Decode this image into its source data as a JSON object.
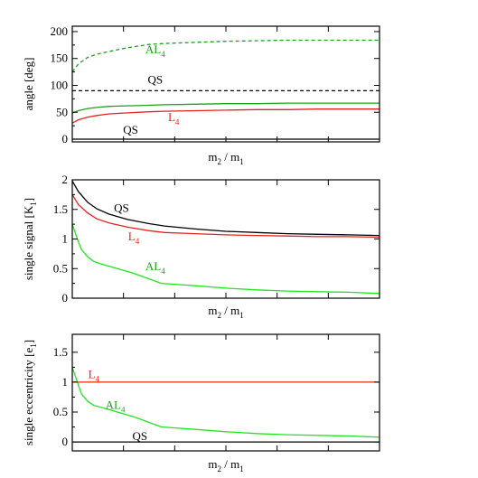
{
  "colors": {
    "black": "#000000",
    "red": "#e8231f",
    "green": "#1aa31a",
    "light_green": "#22e622",
    "frame": "#000000"
  },
  "chart_data": [
    {
      "type": "line",
      "xlabel": "m2 / m1",
      "xlabel_parts": {
        "a": "m",
        "a_sub": "2",
        "sep": " / ",
        "b": "m",
        "b_sub": "1"
      },
      "ylabel": "angle [deg]",
      "ylim": [
        -5,
        210
      ],
      "yticks": [
        0,
        50,
        100,
        150,
        200
      ],
      "ytick_labels": [
        "0",
        "50",
        "100",
        "150",
        "200"
      ],
      "xlim": [
        0,
        1
      ],
      "grid": false,
      "series": [
        {
          "key": "AL4_dashed",
          "color": "#1aa31a",
          "dash": true,
          "x": [
            0.0,
            0.02,
            0.05,
            0.08,
            0.12,
            0.18,
            0.25,
            0.3,
            0.4,
            0.5,
            0.6,
            0.7,
            0.8,
            0.9,
            1.0
          ],
          "y": [
            125,
            140,
            152,
            158,
            163,
            170,
            176,
            178,
            180,
            182,
            183,
            184,
            184,
            184,
            184
          ]
        },
        {
          "key": "QS_dashed",
          "color": "#000000",
          "dash": true,
          "x": [
            0,
            1
          ],
          "y": [
            90,
            90
          ]
        },
        {
          "key": "AL4_solid",
          "color": "#1aa31a",
          "dash": false,
          "x": [
            0.0,
            0.02,
            0.05,
            0.08,
            0.12,
            0.18,
            0.25,
            0.3,
            0.4,
            0.5,
            0.6,
            0.7,
            0.8,
            0.9,
            1.0
          ],
          "y": [
            49,
            53,
            57,
            59,
            61,
            62,
            63,
            64,
            65,
            66,
            66,
            67,
            67,
            67,
            67
          ]
        },
        {
          "key": "L4_solid",
          "color": "#e8231f",
          "dash": false,
          "x": [
            0.0,
            0.02,
            0.05,
            0.08,
            0.12,
            0.18,
            0.25,
            0.3,
            0.4,
            0.5,
            0.6,
            0.7,
            0.8,
            0.9,
            1.0
          ],
          "y": [
            30,
            36,
            41,
            44,
            47,
            49,
            51,
            52,
            53,
            54,
            55,
            55,
            56,
            56,
            56
          ]
        },
        {
          "key": "QS_solid",
          "color": "#000000",
          "dash": false,
          "x": [
            0,
            1
          ],
          "y": [
            0,
            0
          ]
        }
      ],
      "annotations": [
        {
          "key": "AL4",
          "text": "AL",
          "sub": "4",
          "color": "#1aa31a",
          "x": 0.27,
          "y": 160
        },
        {
          "key": "QS_top",
          "text": "QS",
          "sub": "",
          "color": "#000000",
          "x": 0.27,
          "y": 103
        },
        {
          "key": "L4",
          "text": "L",
          "sub": "4",
          "color": "#e8231f",
          "x": 0.33,
          "y": 34
        },
        {
          "key": "QS_bottom",
          "text": "QS",
          "sub": "",
          "color": "#000000",
          "x": 0.19,
          "y": 10
        }
      ]
    },
    {
      "type": "line",
      "xlabel": "m2 / m1",
      "xlabel_parts": {
        "a": "m",
        "a_sub": "2",
        "sep": " / ",
        "b": "m",
        "b_sub": "1"
      },
      "ylabel": "single signal [K1]",
      "ylabel_parts": {
        "a": "single signal [K",
        "a_sub": "1",
        "b": "]"
      },
      "ylim": [
        0,
        2
      ],
      "yticks": [
        0,
        0.5,
        1,
        1.5,
        2
      ],
      "ytick_labels": [
        "0",
        "0.5",
        "1",
        "1.5",
        "2"
      ],
      "xlim": [
        0,
        1
      ],
      "grid": false,
      "series": [
        {
          "key": "QS",
          "color": "#000000",
          "dash": false,
          "x": [
            0.0,
            0.02,
            0.05,
            0.08,
            0.12,
            0.18,
            0.25,
            0.3,
            0.4,
            0.5,
            0.6,
            0.7,
            0.8,
            0.9,
            1.0
          ],
          "y": [
            1.98,
            1.8,
            1.62,
            1.51,
            1.42,
            1.33,
            1.26,
            1.22,
            1.17,
            1.13,
            1.11,
            1.09,
            1.08,
            1.07,
            1.06
          ]
        },
        {
          "key": "L4",
          "color": "#e8231f",
          "dash": false,
          "x": [
            0.0,
            0.02,
            0.05,
            0.08,
            0.12,
            0.18,
            0.25,
            0.3,
            0.4,
            0.5,
            0.6,
            0.7,
            0.8,
            0.9,
            1.0
          ],
          "y": [
            1.75,
            1.58,
            1.44,
            1.34,
            1.27,
            1.2,
            1.14,
            1.11,
            1.09,
            1.07,
            1.06,
            1.05,
            1.04,
            1.04,
            1.03
          ]
        },
        {
          "key": "AL4",
          "color": "#22e622",
          "dash": false,
          "x": [
            0.0,
            0.02,
            0.03,
            0.05,
            0.07,
            0.1,
            0.2,
            0.29,
            0.4,
            0.5,
            0.6,
            0.7,
            0.8,
            0.9,
            1.0
          ],
          "y": [
            1.25,
            0.95,
            0.82,
            0.7,
            0.62,
            0.57,
            0.42,
            0.25,
            0.21,
            0.17,
            0.14,
            0.12,
            0.11,
            0.1,
            0.08
          ]
        }
      ],
      "annotations": [
        {
          "key": "QS",
          "text": "QS",
          "sub": "",
          "color": "#000000",
          "x": 0.16,
          "y": 1.46
        },
        {
          "key": "L4",
          "text": "L",
          "sub": "4",
          "color": "#e8231f",
          "x": 0.2,
          "y": 0.98
        },
        {
          "key": "AL4",
          "text": "AL",
          "sub": "4",
          "color": "#1aa31a",
          "x": 0.27,
          "y": 0.47
        }
      ]
    },
    {
      "type": "line",
      "xlabel": "m2 / m1",
      "xlabel_parts": {
        "a": "m",
        "a_sub": "2",
        "sep": " / ",
        "b": "m",
        "b_sub": "1"
      },
      "ylabel": "single eccentricity [e1]",
      "ylabel_parts": {
        "a": "single eccentricity [e",
        "a_sub": "1",
        "b": "]"
      },
      "ylim": [
        -0.15,
        1.8
      ],
      "yticks": [
        0,
        0.5,
        1,
        1.5
      ],
      "ytick_labels": [
        "0",
        "0.5",
        "1",
        "1.5"
      ],
      "xlim": [
        0,
        1
      ],
      "grid": false,
      "series": [
        {
          "key": "L4",
          "color": "#e8231f",
          "dash": false,
          "x": [
            0,
            1
          ],
          "y": [
            1,
            1
          ]
        },
        {
          "key": "AL4",
          "color": "#22e622",
          "dash": false,
          "x": [
            0.0,
            0.02,
            0.03,
            0.05,
            0.07,
            0.1,
            0.2,
            0.29,
            0.4,
            0.5,
            0.6,
            0.7,
            0.8,
            0.9,
            1.0
          ],
          "y": [
            1.25,
            0.95,
            0.8,
            0.68,
            0.61,
            0.57,
            0.42,
            0.25,
            0.21,
            0.17,
            0.14,
            0.12,
            0.11,
            0.1,
            0.08
          ]
        },
        {
          "key": "QS",
          "color": "#000000",
          "dash": false,
          "x": [
            0,
            1
          ],
          "y": [
            0,
            0
          ]
        }
      ],
      "annotations": [
        {
          "key": "L4",
          "text": "L",
          "sub": "4",
          "color": "#e8231f",
          "x": 0.07,
          "y": 1.07
        },
        {
          "key": "AL4",
          "text": "AL",
          "sub": "4",
          "color": "#1aa31a",
          "x": 0.14,
          "y": 0.55
        },
        {
          "key": "QS",
          "text": "QS",
          "sub": "",
          "color": "#000000",
          "x": 0.22,
          "y": 0.03
        }
      ]
    }
  ]
}
